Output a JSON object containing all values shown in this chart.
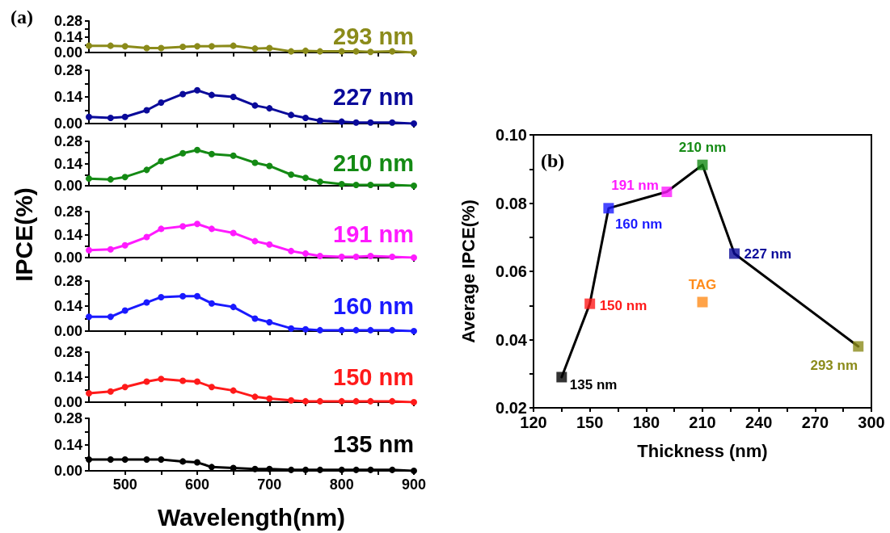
{
  "chart_data": [
    {
      "type": "line",
      "title": "(a)",
      "x": [
        450,
        480,
        500,
        530,
        550,
        580,
        600,
        620,
        650,
        680,
        700,
        730,
        750,
        770,
        800,
        820,
        840,
        870,
        900
      ],
      "xlim": [
        450,
        900
      ],
      "xticks": [
        {
          "value": 500,
          "label": null
        },
        {
          "value": 550,
          "label": null
        },
        {
          "value": 600,
          "label": null
        },
        {
          "value": 650,
          "label": null
        },
        {
          "value": 700,
          "label": null
        },
        {
          "value": 750,
          "label": null
        },
        {
          "value": 800,
          "label": null
        },
        {
          "value": 850,
          "label": null
        },
        {
          "value": 900,
          "label": null
        }
      ],
      "ylim": [
        0,
        0.28
      ],
      "yticks": [
        {
          "value": 0,
          "label": "0.00"
        },
        {
          "value": 0.07,
          "label": null
        },
        0.14,
        {
          "value": 0.21,
          "label": null
        },
        0.28
      ],
      "tick_labels": "y",
      "marker": "circle",
      "line_style": "solid",
      "series": [
        {
          "name": "293 nm",
          "color": "#8b8b1a",
          "values": [
            0.06,
            0.06,
            0.055,
            0.04,
            0.04,
            0.05,
            0.055,
            0.055,
            0.06,
            0.035,
            0.04,
            0.01,
            0.015,
            0.01,
            0.01,
            0.01,
            0.005,
            0.01,
            0.0
          ]
        }
      ]
    },
    {
      "type": "line",
      "x": [
        450,
        480,
        500,
        530,
        550,
        580,
        600,
        620,
        650,
        680,
        700,
        730,
        750,
        770,
        800,
        820,
        840,
        870,
        900
      ],
      "xlim": [
        450,
        900
      ],
      "xticks": [
        {
          "value": 500,
          "label": null
        },
        {
          "value": 550,
          "label": null
        },
        {
          "value": 600,
          "label": null
        },
        {
          "value": 650,
          "label": null
        },
        {
          "value": 700,
          "label": null
        },
        {
          "value": 750,
          "label": null
        },
        {
          "value": 800,
          "label": null
        },
        {
          "value": 850,
          "label": null
        },
        {
          "value": 900,
          "label": null
        }
      ],
      "ylim": [
        0,
        0.28
      ],
      "yticks": [
        {
          "value": 0,
          "label": "0.00"
        },
        {
          "value": 0.07,
          "label": null
        },
        0.14,
        {
          "value": 0.21,
          "label": null
        },
        0.28
      ],
      "tick_labels": "y",
      "marker": "circle",
      "line_style": "solid",
      "series": [
        {
          "name": "227 nm",
          "color": "#0a0a9a",
          "values": [
            0.035,
            0.03,
            0.035,
            0.07,
            0.11,
            0.155,
            0.175,
            0.15,
            0.14,
            0.095,
            0.08,
            0.045,
            0.03,
            0.015,
            0.01,
            0.005,
            0.005,
            0.005,
            0.0
          ]
        }
      ]
    },
    {
      "type": "line",
      "x": [
        450,
        480,
        500,
        530,
        550,
        580,
        600,
        620,
        650,
        680,
        700,
        730,
        750,
        770,
        800,
        820,
        840,
        870,
        900
      ],
      "xlim": [
        450,
        900
      ],
      "xticks": [
        {
          "value": 500,
          "label": null
        },
        {
          "value": 550,
          "label": null
        },
        {
          "value": 600,
          "label": null
        },
        {
          "value": 650,
          "label": null
        },
        {
          "value": 700,
          "label": null
        },
        {
          "value": 750,
          "label": null
        },
        {
          "value": 800,
          "label": null
        },
        {
          "value": 850,
          "label": null
        },
        {
          "value": 900,
          "label": null
        }
      ],
      "ylim": [
        0,
        0.28
      ],
      "yticks": [
        {
          "value": 0,
          "label": "0.00"
        },
        {
          "value": 0.07,
          "label": null
        },
        0.14,
        {
          "value": 0.21,
          "label": null
        },
        0.28
      ],
      "tick_labels": "y",
      "marker": "circle",
      "line_style": "solid",
      "series": [
        {
          "name": "210 nm",
          "color": "#148a14",
          "values": [
            0.045,
            0.04,
            0.055,
            0.1,
            0.155,
            0.205,
            0.225,
            0.2,
            0.19,
            0.145,
            0.125,
            0.07,
            0.05,
            0.025,
            0.01,
            0.005,
            0.005,
            0.005,
            0.0
          ]
        }
      ]
    },
    {
      "type": "line",
      "ylabel": "IPCE(%)",
      "x": [
        450,
        480,
        500,
        530,
        550,
        580,
        600,
        620,
        650,
        680,
        700,
        730,
        750,
        770,
        800,
        820,
        840,
        870,
        900
      ],
      "xlim": [
        450,
        900
      ],
      "xticks": [
        {
          "value": 500,
          "label": null
        },
        {
          "value": 550,
          "label": null
        },
        {
          "value": 600,
          "label": null
        },
        {
          "value": 650,
          "label": null
        },
        {
          "value": 700,
          "label": null
        },
        {
          "value": 750,
          "label": null
        },
        {
          "value": 800,
          "label": null
        },
        {
          "value": 850,
          "label": null
        },
        {
          "value": 900,
          "label": null
        }
      ],
      "ylim": [
        0,
        0.28
      ],
      "yticks": [
        {
          "value": 0,
          "label": "0.00"
        },
        {
          "value": 0.07,
          "label": null
        },
        0.14,
        {
          "value": 0.21,
          "label": null
        },
        0.28
      ],
      "tick_labels": "y",
      "marker": "circle",
      "line_style": "solid",
      "series": [
        {
          "name": "191 nm",
          "color": "#ff1aff",
          "values": [
            0.045,
            0.05,
            0.075,
            0.125,
            0.175,
            0.19,
            0.205,
            0.175,
            0.15,
            0.1,
            0.08,
            0.04,
            0.025,
            0.01,
            0.005,
            0.005,
            0.01,
            0.005,
            0.0
          ]
        }
      ]
    },
    {
      "type": "line",
      "x": [
        450,
        480,
        500,
        530,
        550,
        580,
        600,
        620,
        650,
        680,
        700,
        730,
        750,
        770,
        800,
        820,
        840,
        870,
        900
      ],
      "xlim": [
        450,
        900
      ],
      "xticks": [
        {
          "value": 500,
          "label": null
        },
        {
          "value": 550,
          "label": null
        },
        {
          "value": 600,
          "label": null
        },
        {
          "value": 650,
          "label": null
        },
        {
          "value": 700,
          "label": null
        },
        {
          "value": 750,
          "label": null
        },
        {
          "value": 800,
          "label": null
        },
        {
          "value": 850,
          "label": null
        },
        {
          "value": 900,
          "label": null
        }
      ],
      "ylim": [
        0,
        0.28
      ],
      "yticks": [
        {
          "value": 0,
          "label": "0.00"
        },
        {
          "value": 0.07,
          "label": null
        },
        0.14,
        {
          "value": 0.21,
          "label": null
        },
        0.28
      ],
      "tick_labels": "y",
      "marker": "circle",
      "line_style": "solid",
      "series": [
        {
          "name": "160 nm",
          "color": "#1a1aff",
          "values": [
            0.08,
            0.08,
            0.115,
            0.16,
            0.19,
            0.195,
            0.195,
            0.155,
            0.135,
            0.07,
            0.05,
            0.015,
            0.01,
            0.005,
            0.005,
            0.005,
            0.005,
            0.005,
            0.0
          ]
        }
      ]
    },
    {
      "type": "line",
      "x": [
        450,
        480,
        500,
        530,
        550,
        580,
        600,
        620,
        650,
        680,
        700,
        730,
        750,
        770,
        800,
        820,
        840,
        870,
        900
      ],
      "xlim": [
        450,
        900
      ],
      "xticks": [
        {
          "value": 500,
          "label": null
        },
        {
          "value": 550,
          "label": null
        },
        {
          "value": 600,
          "label": null
        },
        {
          "value": 650,
          "label": null
        },
        {
          "value": 700,
          "label": null
        },
        {
          "value": 750,
          "label": null
        },
        {
          "value": 800,
          "label": null
        },
        {
          "value": 850,
          "label": null
        },
        {
          "value": 900,
          "label": null
        }
      ],
      "ylim": [
        0,
        0.28
      ],
      "yticks": [
        {
          "value": 0,
          "label": "0.00"
        },
        {
          "value": 0.07,
          "label": null
        },
        0.14,
        {
          "value": 0.21,
          "label": null
        },
        0.28
      ],
      "tick_labels": "y",
      "marker": "circle",
      "line_style": "solid",
      "series": [
        {
          "name": "150 nm",
          "color": "#ff1a1a",
          "values": [
            0.05,
            0.06,
            0.085,
            0.115,
            0.13,
            0.12,
            0.115,
            0.085,
            0.065,
            0.03,
            0.02,
            0.01,
            0.005,
            0.005,
            0.005,
            0.005,
            0.005,
            0.005,
            0.0
          ]
        }
      ]
    },
    {
      "type": "line",
      "xlabel": "Wavelength(nm)",
      "x": [
        450,
        480,
        500,
        530,
        550,
        580,
        600,
        620,
        650,
        680,
        700,
        730,
        750,
        770,
        800,
        820,
        840,
        870,
        900
      ],
      "xlim": [
        450,
        900
      ],
      "xticks": [
        500,
        {
          "value": 550,
          "label": null
        },
        600,
        {
          "value": 650,
          "label": null
        },
        700,
        {
          "value": 750,
          "label": null
        },
        800,
        {
          "value": 850,
          "label": null
        },
        900
      ],
      "ylim": [
        0,
        0.28
      ],
      "yticks": [
        {
          "value": 0,
          "label": "0.00"
        },
        {
          "value": 0.07,
          "label": null
        },
        0.14,
        {
          "value": 0.21,
          "label": null
        },
        0.28
      ],
      "marker": "circle",
      "line_style": "solid",
      "series": [
        {
          "name": "135 nm",
          "color": "#000000",
          "values": [
            0.06,
            0.06,
            0.06,
            0.06,
            0.06,
            0.05,
            0.045,
            0.02,
            0.015,
            0.01,
            0.01,
            0.005,
            0.005,
            0.005,
            0.005,
            0.005,
            0.005,
            0.005,
            0.0
          ]
        }
      ]
    },
    {
      "type": "scatter",
      "title": "(b)",
      "xlabel": "Thickness (nm)",
      "ylabel": "Average IPCE(%)",
      "xlim": [
        120,
        300
      ],
      "xticks": [
        120,
        {
          "value": 135,
          "label": null
        },
        150,
        {
          "value": 165,
          "label": null
        },
        180,
        {
          "value": 195,
          "label": null
        },
        210,
        {
          "value": 225,
          "label": null
        },
        240,
        {
          "value": 255,
          "label": null
        },
        270,
        {
          "value": 285,
          "label": null
        },
        300
      ],
      "ylim": [
        0.02,
        0.1
      ],
      "yticks": [
        0.02,
        {
          "value": 0.03,
          "label": null
        },
        0.04,
        {
          "value": 0.05,
          "label": null
        },
        0.06,
        {
          "value": 0.07,
          "label": null
        },
        0.08,
        {
          "value": 0.09,
          "label": null
        },
        {
          "value": 0.1,
          "label": "0.10"
        }
      ],
      "marker": "square",
      "series": [
        {
          "type": "line",
          "color": "#000000",
          "marker": "none",
          "line_style": "solid",
          "x": [
            135,
            150,
            160,
            191,
            210,
            227,
            293
          ],
          "values": [
            0.029,
            0.0505,
            0.0785,
            0.0833,
            0.0912,
            0.0652,
            0.038
          ]
        },
        {
          "type": "scatter",
          "x": [
            135,
            150,
            160,
            191,
            210,
            227,
            210,
            293
          ],
          "values": [
            0.029,
            0.0505,
            0.0785,
            0.0833,
            0.0912,
            0.0652,
            0.051,
            0.038
          ],
          "colors": [
            "#000000",
            "#ff1a1a",
            "#1a1aff",
            "#ff1aff",
            "#148a14",
            "#0a0a9a",
            "#ff8c1a",
            "#8b8b1a"
          ]
        }
      ],
      "annotations": [
        {
          "text": "135 nm",
          "x": 135,
          "y": 0.029
        },
        {
          "text": "150 nm",
          "x": 150,
          "y": 0.0505
        },
        {
          "text": "160 nm",
          "x": 160,
          "y": 0.0785
        },
        {
          "text": "191 nm",
          "x": 191,
          "y": 0.0833
        },
        {
          "text": "210 nm",
          "x": 210,
          "y": 0.0912
        },
        {
          "text": "227 nm",
          "x": 227,
          "y": 0.0652
        },
        {
          "text": "TAG",
          "x": 210,
          "y": 0.051
        },
        {
          "text": "293 nm",
          "x": 293,
          "y": 0.038
        }
      ]
    }
  ]
}
